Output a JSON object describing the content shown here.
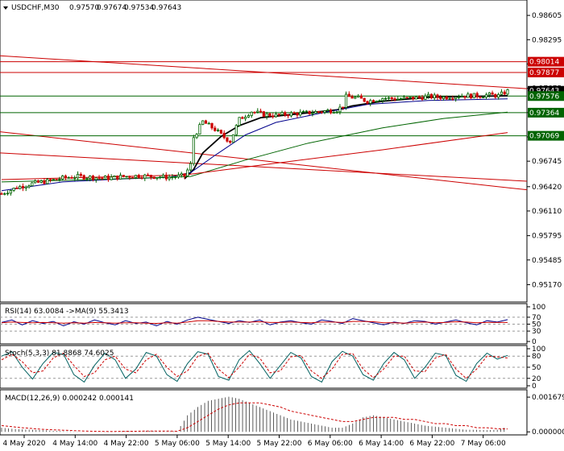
{
  "window": {
    "symbol_label": "USDCHF,M30",
    "ohlc": [
      "0.97570",
      "0.97674",
      "0.97534",
      "0.97643"
    ]
  },
  "chart_data": [
    {
      "type": "candlestick",
      "panel": "price",
      "ylim": [
        0.95,
        0.9875
      ],
      "yticks": [
        "0.98605",
        "0.98295",
        "0.97985",
        "0.97675",
        "0.97365",
        "0.97055",
        "0.96745",
        "0.96420",
        "0.96110",
        "0.95795",
        "0.95485",
        "0.95170"
      ],
      "ytick_values": [
        0.98605,
        0.98295,
        0.97985,
        0.97675,
        0.97365,
        0.97055,
        0.96745,
        0.9642,
        0.9611,
        0.95795,
        0.95485,
        0.9517
      ],
      "xticks": [
        "4 May 2020",
        "4 May 14:00",
        "4 May 22:00",
        "5 May 06:00",
        "5 May 14:00",
        "5 May 22:00",
        "6 May 06:00",
        "6 May 14:00",
        "6 May 22:00",
        "7 May 06:00"
      ],
      "levels": [
        {
          "value": 0.98014,
          "label": "0.98014",
          "color": "#cc0000"
        },
        {
          "value": 0.97877,
          "label": "0.97877",
          "color": "#cc0000"
        },
        {
          "value": 0.97643,
          "label": "0.97643",
          "color": "#000000"
        },
        {
          "value": 0.97576,
          "label": "0.97576",
          "color": "#006400"
        },
        {
          "value": 0.97364,
          "label": "0.97364",
          "color": "#006400"
        },
        {
          "value": 0.97069,
          "label": "0.97069",
          "color": "#006400"
        }
      ],
      "price_path": [
        [
          0,
          0.9633
        ],
        [
          5,
          0.9641
        ],
        [
          10,
          0.9646
        ],
        [
          15,
          0.9649
        ],
        [
          20,
          0.9653
        ],
        [
          25,
          0.9655
        ],
        [
          30,
          0.9654
        ],
        [
          35,
          0.9653
        ],
        [
          40,
          0.9655
        ],
        [
          45,
          0.9656
        ],
        [
          50,
          0.9655
        ],
        [
          55,
          0.9654
        ],
        [
          60,
          0.9656
        ],
        [
          62,
          0.967
        ],
        [
          63,
          0.9705
        ],
        [
          66,
          0.9725
        ],
        [
          70,
          0.9715
        ],
        [
          73,
          0.9705
        ],
        [
          75,
          0.97
        ],
        [
          78,
          0.9728
        ],
        [
          82,
          0.9738
        ],
        [
          86,
          0.9734
        ],
        [
          90,
          0.9733
        ],
        [
          95,
          0.9735
        ],
        [
          100,
          0.9736
        ],
        [
          105,
          0.9738
        ],
        [
          110,
          0.974
        ],
        [
          112,
          0.9745
        ],
        [
          113,
          0.9757
        ],
        [
          117,
          0.9755
        ],
        [
          120,
          0.9751
        ],
        [
          125,
          0.9755
        ],
        [
          130,
          0.9754
        ],
        [
          135,
          0.9755
        ],
        [
          140,
          0.9757
        ],
        [
          145,
          0.9756
        ],
        [
          150,
          0.9758
        ],
        [
          155,
          0.9758
        ],
        [
          160,
          0.9759
        ],
        [
          163,
          0.9758
        ],
        [
          166,
          0.9764
        ]
      ],
      "moving_averages": [
        {
          "color": "#000000",
          "points": [
            [
              60,
              0.9652
            ],
            [
              63,
              0.9664
            ],
            [
              66,
              0.9685
            ],
            [
              72,
              0.9706
            ],
            [
              78,
              0.972
            ],
            [
              85,
              0.973
            ],
            [
              100,
              0.9736
            ],
            [
              110,
              0.974
            ],
            [
              115,
              0.9745
            ],
            [
              125,
              0.9751
            ],
            [
              140,
              0.9756
            ],
            [
              166,
              0.9758
            ]
          ]
        },
        {
          "color": "#00008b",
          "points": [
            [
              0,
              0.9637
            ],
            [
              20,
              0.9648
            ],
            [
              40,
              0.9652
            ],
            [
              55,
              0.9654
            ],
            [
              62,
              0.966
            ],
            [
              70,
              0.9682
            ],
            [
              80,
              0.9708
            ],
            [
              90,
              0.9724
            ],
            [
              105,
              0.9736
            ],
            [
              120,
              0.9747
            ],
            [
              140,
              0.9752
            ],
            [
              166,
              0.9754
            ]
          ]
        },
        {
          "color": "#006400",
          "points": [
            [
              0,
              0.9648
            ],
            [
              30,
              0.9651
            ],
            [
              62,
              0.9655
            ],
            [
              80,
              0.9676
            ],
            [
              100,
              0.9697
            ],
            [
              125,
              0.9717
            ],
            [
              145,
              0.9729
            ],
            [
              166,
              0.9737
            ]
          ]
        },
        {
          "color": "#cc0000",
          "points": [
            [
              0,
              0.9651
            ],
            [
              60,
              0.9657
            ],
            [
              90,
              0.9672
            ],
            [
              125,
              0.9689
            ],
            [
              166,
              0.9711
            ]
          ]
        }
      ],
      "trend_lines": [
        {
          "color": "#cc0000",
          "from": [
            0,
            0.9809
          ],
          "to": [
            166,
            0.9767
          ]
        },
        {
          "color": "#cc0000",
          "from": [
            0,
            0.9712
          ],
          "to": [
            166,
            0.9638
          ]
        },
        {
          "color": "#cc0000",
          "from": [
            0,
            0.9685
          ],
          "to": [
            166,
            0.9649
          ]
        }
      ]
    },
    {
      "type": "line",
      "panel": "rsi",
      "label": "RSI(14) 63.0084 ->MA(9) 55.3413",
      "ylim": [
        0,
        100
      ],
      "yticks": [
        "100",
        "70",
        "50",
        "30",
        "0"
      ],
      "ytick_values": [
        100,
        70,
        50,
        30,
        0
      ],
      "series": [
        {
          "color": "#00008b",
          "values": [
            55,
            62,
            48,
            60,
            52,
            58,
            45,
            57,
            50,
            62,
            54,
            48,
            60,
            52,
            56,
            45,
            58,
            50,
            62,
            70,
            64,
            58,
            52,
            60,
            55,
            62,
            48,
            56,
            60,
            54,
            50,
            62,
            58,
            52,
            66,
            60,
            54,
            48,
            56,
            52,
            60,
            58,
            50,
            56,
            62,
            54,
            48,
            60,
            56,
            63
          ]
        },
        {
          "color": "#cc0000",
          "values": [
            54,
            56,
            55,
            54,
            55,
            54,
            53,
            54,
            53,
            55,
            54,
            53,
            54,
            54,
            53,
            52,
            54,
            53,
            56,
            60,
            60,
            58,
            56,
            56,
            56,
            57,
            55,
            55,
            56,
            55,
            54,
            56,
            56,
            55,
            58,
            58,
            57,
            54,
            54,
            53,
            55,
            56,
            54,
            55,
            57,
            56,
            54,
            55,
            55,
            55
          ]
        }
      ]
    },
    {
      "type": "line",
      "panel": "stoch",
      "label": "Stoch(5,3,3) 81.8868 74.6025",
      "ylim": [
        0,
        100
      ],
      "yticks": [
        "100",
        "80",
        "50",
        "20",
        "0"
      ],
      "ytick_values": [
        100,
        80,
        50,
        20,
        0
      ],
      "series": [
        {
          "color": "#006060",
          "values": [
            80,
            92,
            50,
            18,
            60,
            90,
            85,
            30,
            10,
            55,
            88,
            70,
            20,
            45,
            90,
            80,
            30,
            12,
            60,
            92,
            85,
            25,
            15,
            70,
            95,
            60,
            20,
            55,
            90,
            75,
            25,
            10,
            65,
            93,
            80,
            30,
            15,
            60,
            90,
            70,
            20,
            50,
            88,
            82,
            28,
            12,
            60,
            88,
            72,
            82
          ]
        },
        {
          "color": "#cc0000",
          "values": [
            70,
            85,
            65,
            35,
            40,
            75,
            88,
            55,
            25,
            35,
            70,
            80,
            45,
            35,
            70,
            85,
            50,
            25,
            40,
            80,
            88,
            45,
            22,
            50,
            85,
            75,
            35,
            40,
            78,
            82,
            40,
            20,
            45,
            85,
            87,
            45,
            22,
            45,
            80,
            80,
            40,
            38,
            75,
            85,
            45,
            20,
            45,
            80,
            78,
            75
          ]
        }
      ]
    },
    {
      "type": "bar",
      "panel": "macd",
      "label": "MACD(12,26,9) 0.000242 0.000141",
      "ylim": [
        -3e-05,
        0.0018
      ],
      "yticks": [
        "0.001679",
        "0.000000"
      ],
      "ytick_values": [
        0.001679,
        0.0
      ],
      "values": [
        0.0002,
        0.00015,
        0.00012,
        0.0001,
        8e-05,
        5e-05,
        3e-05,
        1e-05,
        0.0,
        0.0,
        1e-05,
        2e-05,
        3e-05,
        4e-05,
        5e-05,
        4e-05,
        3e-05,
        2e-05,
        0.0008,
        0.0012,
        0.0015,
        0.0016,
        0.0017,
        0.0016,
        0.0014,
        0.0012,
        0.001,
        0.0008,
        0.0006,
        0.0005,
        0.0004,
        0.0003,
        0.0002,
        0.0002,
        0.0004,
        0.0007,
        0.0008,
        0.0007,
        0.0006,
        0.0005,
        0.0004,
        0.0003,
        0.00025,
        0.0002,
        0.00015,
        0.0001,
        0.0001,
        8e-05,
        0.0001,
        0.00024
      ],
      "signal": [
        0.0003,
        0.00025,
        0.0002,
        0.00016,
        0.00012,
        0.0001,
        8e-05,
        6e-05,
        4e-05,
        3e-05,
        2e-05,
        2e-05,
        3e-05,
        3e-05,
        4e-05,
        4e-05,
        4e-05,
        3e-05,
        0.0002,
        0.0005,
        0.0008,
        0.0011,
        0.0013,
        0.0014,
        0.0014,
        0.0014,
        0.0013,
        0.0012,
        0.001,
        0.0009,
        0.0008,
        0.0007,
        0.0006,
        0.0005,
        0.0005,
        0.0006,
        0.0007,
        0.0007,
        0.0007,
        0.0006,
        0.0006,
        0.0005,
        0.0004,
        0.0004,
        0.0003,
        0.0003,
        0.0002,
        0.0002,
        0.00015,
        0.00014
      ]
    }
  ],
  "colors": {
    "up_candle": "#006400",
    "down_candle": "#cc0000",
    "grid": "#aaaaaa",
    "bg": "#ffffff"
  }
}
